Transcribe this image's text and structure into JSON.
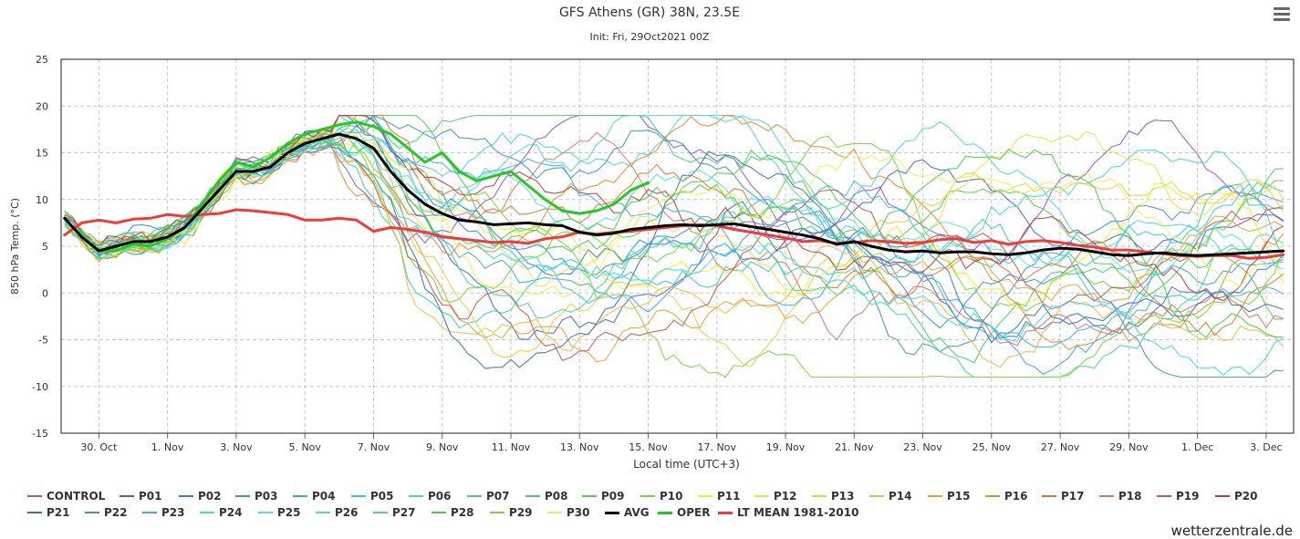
{
  "chart_data": {
    "type": "line",
    "title": "GFS Athens (GR) 38N, 23.5E",
    "subtitle": "Init: Fri, 29Oct2021 00Z",
    "xlabel": "Local time (UTC+3)",
    "ylabel": "850 hPa Temp. (°C)",
    "ylim": [
      -15,
      25
    ],
    "yticks": [
      -15,
      -10,
      -5,
      0,
      5,
      10,
      15,
      20,
      25
    ],
    "x_unit": "day offset from 29 Oct 2021 00Z",
    "xlim": [
      -0.1,
      35.8
    ],
    "xticks": [
      {
        "label": "30. Oct",
        "x": 1.0
      },
      {
        "label": "1. Nov",
        "x": 3.0
      },
      {
        "label": "3. Nov",
        "x": 5.0
      },
      {
        "label": "5. Nov",
        "x": 7.0
      },
      {
        "label": "7. Nov",
        "x": 9.0
      },
      {
        "label": "9. Nov",
        "x": 11.0
      },
      {
        "label": "11. Nov",
        "x": 13.0
      },
      {
        "label": "13. Nov",
        "x": 15.0
      },
      {
        "label": "15. Nov",
        "x": 17.0
      },
      {
        "label": "17. Nov",
        "x": 19.0
      },
      {
        "label": "19. Nov",
        "x": 21.0
      },
      {
        "label": "21. Nov",
        "x": 23.0
      },
      {
        "label": "23. Nov",
        "x": 25.0
      },
      {
        "label": "25. Nov",
        "x": 27.0
      },
      {
        "label": "27. Nov",
        "x": 29.0
      },
      {
        "label": "29. Nov",
        "x": 31.0
      },
      {
        "label": "1. Dec",
        "x": 33.0
      },
      {
        "label": "3. Dec",
        "x": 35.0
      }
    ],
    "grid": true,
    "legend_position": "bottom",
    "highlight_series": {
      "AVG": {
        "x": [
          0,
          0.5,
          1,
          1.5,
          2,
          2.5,
          3,
          3.5,
          4,
          4.5,
          5,
          5.5,
          6,
          6.5,
          7,
          7.5,
          8,
          8.5,
          9,
          9.5,
          10,
          10.5,
          11,
          11.5,
          12,
          12.5,
          13,
          13.5,
          14,
          14.5,
          15,
          15.5,
          16,
          16.5,
          17,
          17.5,
          18,
          18.5,
          19,
          19.5,
          20,
          20.5,
          21,
          21.5,
          22,
          22.5,
          23,
          23.5,
          24,
          24.5,
          25,
          25.5,
          26,
          26.5,
          27,
          27.5,
          28,
          28.5,
          29,
          29.5,
          30,
          30.5,
          31,
          31.5,
          32,
          32.5,
          33,
          33.5,
          34,
          34.5,
          35,
          35.5
        ],
        "y": [
          8,
          6,
          4.5,
          5,
          5.5,
          5.5,
          6,
          7,
          9,
          11,
          13,
          13,
          13.5,
          15,
          16,
          16.5,
          17,
          16.5,
          15.5,
          13,
          11,
          9.5,
          8.5,
          7.8,
          7.6,
          7.3,
          7.4,
          7.5,
          7.3,
          7.2,
          6.5,
          6.2,
          6.4,
          6.8,
          7,
          7.2,
          7.3,
          7.2,
          7.3,
          7.4,
          7.1,
          6.8,
          6.5,
          6.2,
          5.8,
          5.2,
          5.5,
          5.0,
          4.6,
          4.4,
          4.5,
          4.3,
          4.4,
          4.4,
          4.2,
          4.1,
          4.3,
          4.6,
          4.8,
          4.7,
          4.4,
          4.1,
          4.0,
          4.2,
          4.3,
          4.1,
          4.0,
          4.1,
          4.2,
          4.3,
          4.4,
          4.5
        ]
      },
      "OPER": {
        "x": [
          0,
          0.5,
          1,
          1.5,
          2,
          2.5,
          3,
          3.5,
          4,
          4.5,
          5,
          5.5,
          6,
          6.5,
          7,
          7.5,
          8,
          8.5,
          9,
          9.5,
          10,
          10.5,
          11,
          11.5,
          12,
          12.5,
          13,
          13.5,
          14,
          14.5,
          15,
          15.5,
          16,
          16.5,
          17
        ],
        "y": [
          8,
          6,
          4.5,
          4.5,
          5.2,
          5,
          5.8,
          7,
          9.5,
          12,
          14,
          13.5,
          14.5,
          16,
          17,
          17.5,
          18,
          18.3,
          17.8,
          17,
          15.5,
          14,
          15,
          13,
          12,
          12.5,
          13,
          11.5,
          10,
          8.8,
          8.5,
          8.8,
          9.5,
          11,
          11.8
        ]
      },
      "LT MEAN 1981-2010": {
        "x": [
          0,
          0.5,
          1,
          1.5,
          2,
          2.5,
          3,
          3.5,
          4,
          4.5,
          5,
          5.5,
          6,
          6.5,
          7,
          7.5,
          8,
          8.5,
          9,
          9.5,
          10,
          10.5,
          11,
          11.5,
          12,
          12.5,
          13,
          13.5,
          14,
          14.5,
          15,
          15.5,
          16,
          16.5,
          17,
          17.5,
          18,
          18.5,
          19,
          19.5,
          20,
          20.5,
          21,
          21.5,
          22,
          22.5,
          23,
          23.5,
          24,
          24.5,
          25,
          25.5,
          26,
          26.5,
          27,
          27.5,
          28,
          28.5,
          29,
          29.5,
          30,
          30.5,
          31,
          31.5,
          32,
          32.5,
          33,
          33.5,
          34,
          34.5,
          35,
          35.5
        ],
        "y": [
          6.2,
          7.5,
          7.8,
          7.5,
          7.9,
          8.0,
          8.4,
          8.2,
          8.4,
          8.5,
          8.9,
          8.8,
          8.6,
          8.4,
          7.8,
          7.8,
          8.0,
          7.8,
          6.6,
          7.0,
          6.8,
          6.5,
          6.0,
          5.8,
          5.6,
          5.4,
          5.5,
          5.3,
          5.8,
          6.0,
          6.5,
          6.3,
          6.5,
          6.6,
          6.8,
          7.0,
          7.2,
          7.3,
          7.2,
          6.8,
          6.5,
          6.2,
          5.9,
          5.5,
          5.6,
          5.3,
          5.4,
          5.6,
          5.5,
          5.3,
          5.4,
          5.7,
          5.8,
          5.4,
          5.6,
          5.2,
          5.5,
          5.6,
          5.4,
          5.1,
          4.9,
          4.6,
          4.6,
          4.4,
          4.2,
          4.0,
          3.9,
          4.0,
          4.0,
          3.7,
          3.8,
          4.1
        ]
      }
    },
    "ensemble_note": "CONTROL and P01-P30: 31 ensemble members forming a spread envelope around AVG",
    "series": [
      {
        "name": "CONTROL",
        "color": "#8a5ad6"
      },
      {
        "name": "P01",
        "color": "#4a62d8"
      },
      {
        "name": "P02",
        "color": "#3d78d6"
      },
      {
        "name": "P03",
        "color": "#3e8ed8"
      },
      {
        "name": "P04",
        "color": "#38a4e0"
      },
      {
        "name": "P05",
        "color": "#33c4e6"
      },
      {
        "name": "P06",
        "color": "#44d6d0"
      },
      {
        "name": "P07",
        "color": "#30d4a6"
      },
      {
        "name": "P08",
        "color": "#3fcf70"
      },
      {
        "name": "P09",
        "color": "#4ed04a"
      },
      {
        "name": "P10",
        "color": "#6fd830"
      },
      {
        "name": "P11",
        "color": "#f4f020"
      },
      {
        "name": "P12",
        "color": "#ece240"
      },
      {
        "name": "P13",
        "color": "#eccd40"
      },
      {
        "name": "P14",
        "color": "#f2b842"
      },
      {
        "name": "P15",
        "color": "#ee9f34"
      },
      {
        "name": "P16",
        "color": "#e88a2c"
      },
      {
        "name": "P17",
        "color": "#e0782e"
      },
      {
        "name": "P18",
        "color": "#d4786a"
      },
      {
        "name": "P19",
        "color": "#c4584e"
      },
      {
        "name": "P20",
        "color": "#b83c38"
      },
      {
        "name": "P21",
        "color": "#3e6fae"
      },
      {
        "name": "P22",
        "color": "#4290cc"
      },
      {
        "name": "P23",
        "color": "#38b2ee"
      },
      {
        "name": "P24",
        "color": "#36dcf0"
      },
      {
        "name": "P25",
        "color": "#54e2e0"
      },
      {
        "name": "P26",
        "color": "#50dcc0"
      },
      {
        "name": "P27",
        "color": "#48d890"
      },
      {
        "name": "P28",
        "color": "#44d040"
      },
      {
        "name": "P29",
        "color": "#7ad83a"
      },
      {
        "name": "P30",
        "color": "#f0ee58"
      },
      {
        "name": "AVG",
        "color": "#000000"
      },
      {
        "name": "OPER",
        "color": "#22c922"
      },
      {
        "name": "LT MEAN 1981-2010",
        "color": "#ee3b3b"
      }
    ]
  },
  "legend_rows": [
    [
      "CONTROL",
      "P01",
      "P02",
      "P03",
      "P04",
      "P05",
      "P06",
      "P07",
      "P08",
      "P09",
      "P10",
      "P11",
      "P12",
      "P13",
      "P14",
      "P15",
      "P16",
      "P17",
      "P18",
      "P19",
      "P20"
    ],
    [
      "P21",
      "P22",
      "P23",
      "P24",
      "P25",
      "P26",
      "P27",
      "P28",
      "P29",
      "P30",
      "AVG",
      "OPER",
      "LT MEAN 1981-2010"
    ]
  ],
  "credit": "wetterzentrale.de",
  "menu_icon": "hamburger-menu-icon"
}
